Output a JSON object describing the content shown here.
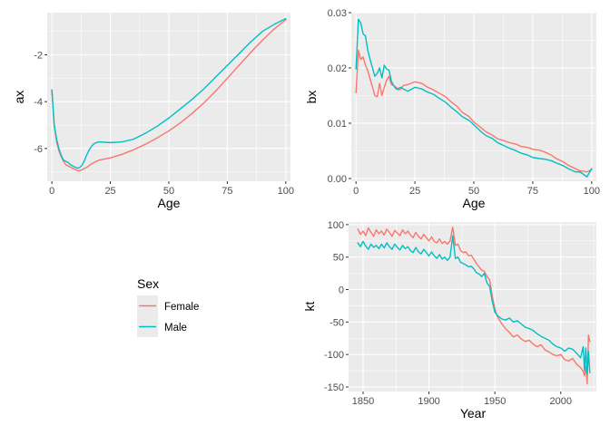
{
  "legend": {
    "title": "Sex",
    "entries": [
      {
        "label": "Female",
        "color": "#F8766D"
      },
      {
        "label": "Male",
        "color": "#00BFC4"
      }
    ]
  },
  "chart_data": [
    {
      "id": "ax",
      "type": "line",
      "xlabel": "Age",
      "ylabel": "ax",
      "xlim": [
        -2,
        102
      ],
      "ylim": [
        -7.4,
        -0.2
      ],
      "xticks": [
        0,
        25,
        50,
        75,
        100
      ],
      "yticks": [
        -6,
        -4,
        -2
      ],
      "grid": true,
      "series": [
        {
          "name": "Female",
          "color": "#F8766D",
          "x": [
            0,
            1,
            2,
            3,
            4,
            5,
            6,
            7,
            8,
            9,
            10,
            11,
            12,
            13,
            14,
            15,
            17,
            20,
            25,
            30,
            35,
            40,
            45,
            50,
            55,
            60,
            65,
            70,
            75,
            80,
            85,
            90,
            95,
            100
          ],
          "y": [
            -3.5,
            -5.0,
            -5.7,
            -6.1,
            -6.35,
            -6.55,
            -6.7,
            -6.75,
            -6.8,
            -6.85,
            -6.9,
            -6.95,
            -6.95,
            -6.9,
            -6.85,
            -6.8,
            -6.65,
            -6.5,
            -6.4,
            -6.25,
            -6.05,
            -5.82,
            -5.55,
            -5.25,
            -4.9,
            -4.5,
            -4.05,
            -3.55,
            -3.0,
            -2.45,
            -1.9,
            -1.38,
            -0.9,
            -0.5
          ]
        },
        {
          "name": "Male",
          "color": "#00BFC4",
          "x": [
            0,
            1,
            2,
            3,
            4,
            5,
            6,
            7,
            8,
            9,
            10,
            11,
            12,
            13,
            14,
            15,
            16,
            17,
            18,
            19,
            20,
            25,
            30,
            35,
            40,
            45,
            50,
            55,
            60,
            65,
            70,
            75,
            80,
            85,
            90,
            95,
            100
          ],
          "y": [
            -3.5,
            -5.0,
            -5.6,
            -6.0,
            -6.3,
            -6.5,
            -6.55,
            -6.6,
            -6.7,
            -6.75,
            -6.8,
            -6.85,
            -6.8,
            -6.7,
            -6.5,
            -6.25,
            -6.05,
            -5.9,
            -5.8,
            -5.75,
            -5.72,
            -5.75,
            -5.72,
            -5.6,
            -5.35,
            -5.05,
            -4.7,
            -4.3,
            -3.9,
            -3.45,
            -2.95,
            -2.45,
            -1.95,
            -1.45,
            -1.0,
            -0.7,
            -0.45
          ]
        }
      ]
    },
    {
      "id": "bx",
      "type": "line",
      "xlabel": "Age",
      "ylabel": "bx",
      "xlim": [
        -2,
        102
      ],
      "ylim": [
        -0.0005,
        0.03
      ],
      "xticks": [
        0,
        25,
        50,
        75,
        100
      ],
      "yticks": [
        0.0,
        0.01,
        0.02,
        0.03
      ],
      "ytick_labels": [
        "0.00",
        "0.01",
        "0.02",
        "0.03"
      ],
      "grid": true,
      "series": [
        {
          "name": "Female",
          "color": "#F8766D",
          "x": [
            0,
            1,
            2,
            3,
            4,
            5,
            6,
            7,
            8,
            9,
            10,
            11,
            12,
            13,
            14,
            15,
            16,
            17,
            18,
            19,
            20,
            22,
            25,
            28,
            30,
            33,
            35,
            38,
            40,
            43,
            45,
            48,
            50,
            53,
            55,
            58,
            60,
            63,
            65,
            68,
            70,
            73,
            75,
            78,
            80,
            83,
            85,
            88,
            90,
            93,
            95,
            98,
            100
          ],
          "y": [
            0.0155,
            0.0232,
            0.0215,
            0.022,
            0.0205,
            0.0195,
            0.018,
            0.0165,
            0.015,
            0.0148,
            0.0172,
            0.015,
            0.0165,
            0.0178,
            0.0185,
            0.017,
            0.0168,
            0.0165,
            0.016,
            0.0162,
            0.0168,
            0.017,
            0.0175,
            0.0172,
            0.0166,
            0.016,
            0.0155,
            0.0148,
            0.014,
            0.013,
            0.012,
            0.0112,
            0.0102,
            0.0092,
            0.0085,
            0.0078,
            0.0072,
            0.0068,
            0.0065,
            0.0062,
            0.0058,
            0.0056,
            0.0053,
            0.0051,
            0.0048,
            0.0042,
            0.0036,
            0.003,
            0.0024,
            0.0018,
            0.0014,
            0.0012,
            0.0016
          ]
        },
        {
          "name": "Male",
          "color": "#00BFC4",
          "x": [
            0,
            1,
            2,
            3,
            4,
            5,
            6,
            7,
            8,
            9,
            10,
            11,
            12,
            13,
            14,
            15,
            16,
            17,
            18,
            19,
            20,
            22,
            25,
            28,
            30,
            33,
            35,
            38,
            40,
            43,
            45,
            48,
            50,
            53,
            55,
            58,
            60,
            63,
            65,
            68,
            70,
            73,
            75,
            78,
            80,
            83,
            85,
            88,
            90,
            93,
            95,
            98,
            100
          ],
          "y": [
            0.0198,
            0.0288,
            0.0282,
            0.0262,
            0.0258,
            0.0232,
            0.0215,
            0.02,
            0.0185,
            0.019,
            0.02,
            0.0182,
            0.0205,
            0.0198,
            0.0196,
            0.0176,
            0.0168,
            0.0162,
            0.0163,
            0.0165,
            0.0162,
            0.0158,
            0.0165,
            0.0162,
            0.0157,
            0.0152,
            0.0146,
            0.0138,
            0.013,
            0.012,
            0.0112,
            0.0105,
            0.0097,
            0.0085,
            0.0078,
            0.0072,
            0.0065,
            0.0059,
            0.0055,
            0.005,
            0.0046,
            0.0042,
            0.0038,
            0.0036,
            0.0035,
            0.0032,
            0.0028,
            0.0023,
            0.0018,
            0.0012,
            0.0012,
            0.0003,
            0.0018
          ]
        }
      ]
    },
    {
      "id": "kt",
      "type": "line",
      "xlabel": "Year",
      "ylabel": "kt",
      "xlim": [
        1839,
        2027
      ],
      "ylim": [
        -157,
        104
      ],
      "xticks": [
        1850,
        1900,
        1950,
        2000
      ],
      "yticks": [
        -150,
        -100,
        -50,
        0,
        50,
        100
      ],
      "grid": true,
      "series": [
        {
          "name": "Female",
          "color": "#F8766D",
          "x": [
            1846,
            1848,
            1850,
            1852,
            1854,
            1856,
            1858,
            1860,
            1862,
            1864,
            1866,
            1868,
            1870,
            1872,
            1874,
            1876,
            1878,
            1880,
            1882,
            1884,
            1886,
            1888,
            1890,
            1892,
            1894,
            1896,
            1898,
            1900,
            1902,
            1904,
            1906,
            1908,
            1910,
            1912,
            1914,
            1916,
            1918,
            1920,
            1922,
            1924,
            1926,
            1928,
            1930,
            1932,
            1934,
            1936,
            1938,
            1940,
            1942,
            1944,
            1946,
            1948,
            1950,
            1952,
            1955,
            1958,
            1961,
            1964,
            1967,
            1970,
            1973,
            1976,
            1979,
            1982,
            1985,
            1988,
            1991,
            1994,
            1997,
            2000,
            2003,
            2006,
            2009,
            2012,
            2015,
            2017,
            2018,
            2019,
            2020,
            2021,
            2022
          ],
          "y": [
            93,
            85,
            90,
            83,
            95,
            88,
            82,
            92,
            86,
            90,
            84,
            93,
            88,
            82,
            91,
            87,
            83,
            92,
            86,
            90,
            84,
            80,
            88,
            82,
            78,
            85,
            80,
            75,
            81,
            74,
            72,
            78,
            71,
            74,
            70,
            75,
            96,
            68,
            70,
            60,
            57,
            58,
            52,
            53,
            47,
            40,
            35,
            30,
            28,
            20,
            15,
            -10,
            -30,
            -42,
            -52,
            -60,
            -66,
            -73,
            -70,
            -76,
            -80,
            -78,
            -84,
            -88,
            -85,
            -93,
            -96,
            -100,
            -102,
            -100,
            -108,
            -110,
            -106,
            -115,
            -120,
            -126,
            -133,
            -118,
            -145,
            -70,
            -80
          ]
        },
        {
          "name": "Male",
          "color": "#00BFC4",
          "x": [
            1846,
            1848,
            1850,
            1852,
            1854,
            1856,
            1858,
            1860,
            1862,
            1864,
            1866,
            1868,
            1870,
            1872,
            1874,
            1876,
            1878,
            1880,
            1882,
            1884,
            1886,
            1888,
            1890,
            1892,
            1894,
            1896,
            1898,
            1900,
            1902,
            1904,
            1906,
            1908,
            1910,
            1912,
            1914,
            1916,
            1918,
            1920,
            1922,
            1924,
            1926,
            1928,
            1930,
            1932,
            1934,
            1936,
            1938,
            1940,
            1942,
            1944,
            1946,
            1948,
            1950,
            1952,
            1955,
            1958,
            1961,
            1964,
            1967,
            1970,
            1973,
            1976,
            1979,
            1982,
            1985,
            1988,
            1991,
            1994,
            1997,
            2000,
            2003,
            2006,
            2009,
            2012,
            2015,
            2017,
            2018,
            2019,
            2020,
            2021,
            2022
          ],
          "y": [
            72,
            66,
            74,
            67,
            62,
            70,
            65,
            68,
            63,
            70,
            64,
            72,
            66,
            62,
            70,
            65,
            61,
            68,
            63,
            66,
            60,
            57,
            65,
            58,
            55,
            62,
            57,
            52,
            58,
            52,
            48,
            54,
            47,
            50,
            45,
            50,
            83,
            48,
            50,
            42,
            40,
            38,
            35,
            36,
            32,
            26,
            24,
            20,
            25,
            10,
            5,
            -18,
            -35,
            -40,
            -45,
            -47,
            -44,
            -50,
            -48,
            -53,
            -58,
            -60,
            -63,
            -68,
            -72,
            -75,
            -78,
            -84,
            -88,
            -90,
            -95,
            -90,
            -92,
            -98,
            -105,
            -88,
            -125,
            -90,
            -130,
            -95,
            -128
          ]
        }
      ]
    }
  ]
}
